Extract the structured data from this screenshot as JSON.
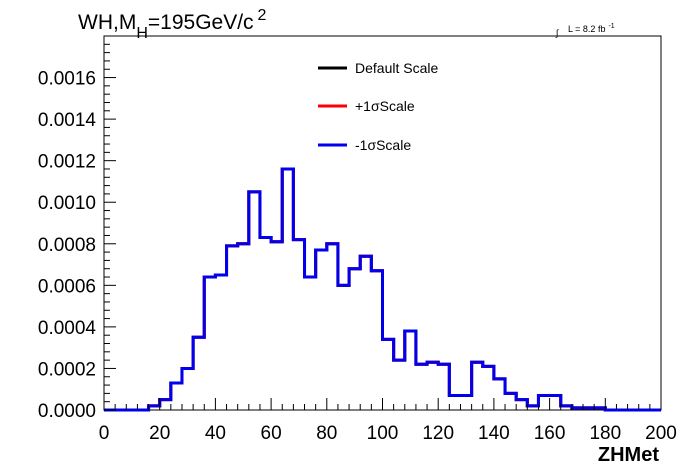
{
  "chart_data": {
    "type": "histogram-step",
    "title": {
      "main": "WH,M",
      "subscript": "H",
      "value": "=195GeV/c",
      "superscript": "2"
    },
    "luminosity": {
      "symbol": "∫",
      "text": "L = 8.2 fb",
      "superscript": "-1"
    },
    "xlabel": "ZHMet",
    "ylabel": "",
    "xlim": [
      0,
      200
    ],
    "ylim": [
      0,
      0.0018
    ],
    "x_ticks": [
      0,
      20,
      40,
      60,
      80,
      100,
      120,
      140,
      160,
      180,
      200
    ],
    "x_tick_labels": [
      "0",
      "20",
      "40",
      "60",
      "80",
      "100",
      "120",
      "140",
      "160",
      "180",
      "200"
    ],
    "y_ticks": [
      0,
      0.0002,
      0.0004,
      0.0006,
      0.0008,
      0.001,
      0.0012,
      0.0014,
      0.0016
    ],
    "y_tick_labels": [
      "0.0000",
      "0.0002",
      "0.0004",
      "0.0006",
      "0.0008",
      "0.0010",
      "0.0012",
      "0.0014",
      "0.0016"
    ],
    "bin_width": 4,
    "bin_edges_start": 0,
    "legend_position": "top-center",
    "grid": false,
    "series": [
      {
        "name": "Default Scale",
        "color": "#000000",
        "values": [
          0,
          0,
          0,
          0,
          2e-05,
          5e-05,
          0.00013,
          0.0002,
          0.00035,
          0.00064,
          0.00065,
          0.00079,
          0.0008,
          0.00105,
          0.00083,
          0.00081,
          0.00116,
          0.00082,
          0.00064,
          0.00077,
          0.0008,
          0.0006,
          0.00068,
          0.00074,
          0.00067,
          0.00034,
          0.00024,
          0.00038,
          0.00022,
          0.00023,
          0.00022,
          7e-05,
          7e-05,
          0.00023,
          0.00021,
          0.00015,
          8e-05,
          5e-05,
          2e-05,
          7e-05,
          7e-05,
          2e-05,
          1e-05,
          1e-05,
          1e-05,
          0,
          0,
          0,
          0,
          0
        ]
      },
      {
        "name": "+1σScale",
        "color": "#ff0000",
        "values": [
          0,
          0,
          0,
          0,
          2e-05,
          5e-05,
          0.00013,
          0.0002,
          0.00035,
          0.00064,
          0.00065,
          0.00079,
          0.0008,
          0.00105,
          0.00083,
          0.00081,
          0.00116,
          0.00082,
          0.00064,
          0.00077,
          0.0008,
          0.0006,
          0.00068,
          0.00074,
          0.00067,
          0.00034,
          0.00024,
          0.00038,
          0.00022,
          0.00023,
          0.00022,
          7e-05,
          7e-05,
          0.00023,
          0.00021,
          0.00015,
          8e-05,
          5e-05,
          2e-05,
          7e-05,
          7e-05,
          2e-05,
          1e-05,
          1e-05,
          1e-05,
          0,
          0,
          0,
          0,
          0
        ]
      },
      {
        "name": "-1σScale",
        "color": "#0000ee",
        "values": [
          0,
          0,
          0,
          0,
          2e-05,
          5e-05,
          0.00013,
          0.0002,
          0.00035,
          0.00064,
          0.00065,
          0.00079,
          0.0008,
          0.00105,
          0.00083,
          0.00081,
          0.00116,
          0.00082,
          0.00064,
          0.00077,
          0.0008,
          0.0006,
          0.00068,
          0.00074,
          0.00067,
          0.00034,
          0.00024,
          0.00038,
          0.00022,
          0.00023,
          0.00022,
          7e-05,
          7e-05,
          0.00023,
          0.00021,
          0.00015,
          8e-05,
          5e-05,
          2e-05,
          7e-05,
          7e-05,
          2e-05,
          1e-05,
          1e-05,
          1e-05,
          0,
          0,
          0,
          0,
          0
        ]
      }
    ]
  }
}
